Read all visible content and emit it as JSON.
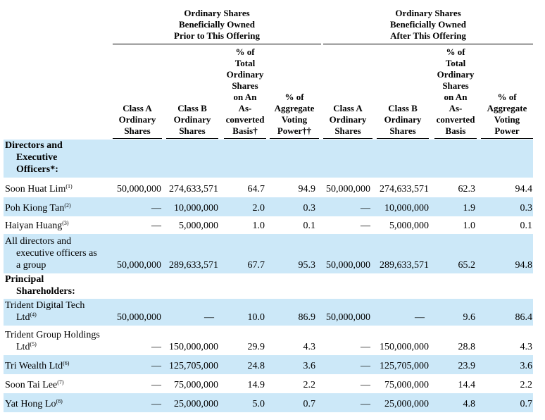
{
  "groups": {
    "prior": [
      "Ordinary Shares",
      "Beneficially Owned",
      "Prior to This Offering"
    ],
    "after": [
      "Ordinary Shares",
      "Beneficially Owned",
      "After This Offering"
    ]
  },
  "headers": {
    "class_a": [
      "Class A",
      "Ordinary",
      "Shares"
    ],
    "class_b": [
      "Class B",
      "Ordinary",
      "Shares"
    ],
    "pct_total_prior": [
      "% of",
      "Total",
      "Ordinary",
      "Shares",
      "on An",
      "As-",
      "converted",
      "Basis†"
    ],
    "pct_voting_prior": [
      "% of",
      "Aggregate",
      "Voting",
      "Power††"
    ],
    "class_a_after": [
      "Class A",
      "Ordinary",
      "Shares"
    ],
    "class_b_after": [
      "Class B",
      "Ordinary",
      "Shares"
    ],
    "pct_total_after": [
      "% of",
      "Total",
      "Ordinary",
      "Shares",
      "on An",
      "As-",
      "converted",
      "Basis"
    ],
    "pct_voting_after": [
      "% of",
      "Aggregate",
      "Voting",
      "Power"
    ]
  },
  "sections": {
    "directors": [
      "Directors and",
      "Executive",
      "Officers*:"
    ],
    "principal": [
      "Principal",
      "Shareholders:"
    ]
  },
  "rows": [
    {
      "name": [
        "Soon Huat Lim"
      ],
      "note": "(1)",
      "a": "50,000,000",
      "b": "274,633,571",
      "pt": "64.7",
      "pv": "94.9",
      "a2": "50,000,000",
      "b2": "274,633,571",
      "pt2": "62.3",
      "pv2": "94.4"
    },
    {
      "name": [
        "Poh Kiong Tan"
      ],
      "note": "(2)",
      "a": "—",
      "b": "10,000,000",
      "pt": "2.0",
      "pv": "0.3",
      "a2": "—",
      "b2": "10,000,000",
      "pt2": "1.9",
      "pv2": "0.3"
    },
    {
      "name": [
        "Haiyan Huang"
      ],
      "note": "(3)",
      "a": "—",
      "b": "5,000,000",
      "pt": "1.0",
      "pv": "0.1",
      "a2": "—",
      "b2": "5,000,000",
      "pt2": "1.0",
      "pv2": "0.1"
    },
    {
      "name": [
        "All directors and",
        "executive officers as",
        "a group"
      ],
      "note": "",
      "a": "50,000,000",
      "b": "289,633,571",
      "pt": "67.7",
      "pv": "95.3",
      "a2": "50,000,000",
      "b2": "289,633,571",
      "pt2": "65.2",
      "pv2": "94.8"
    },
    {
      "name": [
        "Trident Digital Tech",
        "Ltd"
      ],
      "note": "(4)",
      "a": "50,000,000",
      "b": "—",
      "pt": "10.0",
      "pv": "86.9",
      "a2": "50,000,000",
      "b2": "—",
      "pt2": "9.6",
      "pv2": "86.4"
    },
    {
      "name": [
        "Trident Group Holdings",
        "Ltd"
      ],
      "note": "(5)",
      "a": "—",
      "b": "150,000,000",
      "pt": "29.9",
      "pv": "4.3",
      "a2": "—",
      "b2": "150,000,000",
      "pt2": "28.8",
      "pv2": "4.3"
    },
    {
      "name": [
        "Tri Wealth Ltd"
      ],
      "note": "(6)",
      "a": "—",
      "b": "125,705,000",
      "pt": "24.8",
      "pv": "3.6",
      "a2": "—",
      "b2": "125,705,000",
      "pt2": "23.9",
      "pv2": "3.6"
    },
    {
      "name": [
        "Soon Tai Lee"
      ],
      "note": "(7)",
      "a": "—",
      "b": "75,000,000",
      "pt": "14.9",
      "pv": "2.2",
      "a2": "—",
      "b2": "75,000,000",
      "pt2": "14.4",
      "pv2": "2.2"
    },
    {
      "name": [
        "Yat Hong Lo"
      ],
      "note": "(8)",
      "a": "—",
      "b": "25,000,000",
      "pt": "5.0",
      "pv": "0.7",
      "a2": "—",
      "b2": "25,000,000",
      "pt2": "4.8",
      "pv2": "0.7"
    }
  ],
  "colors": {
    "shade": "#cce8f8"
  }
}
